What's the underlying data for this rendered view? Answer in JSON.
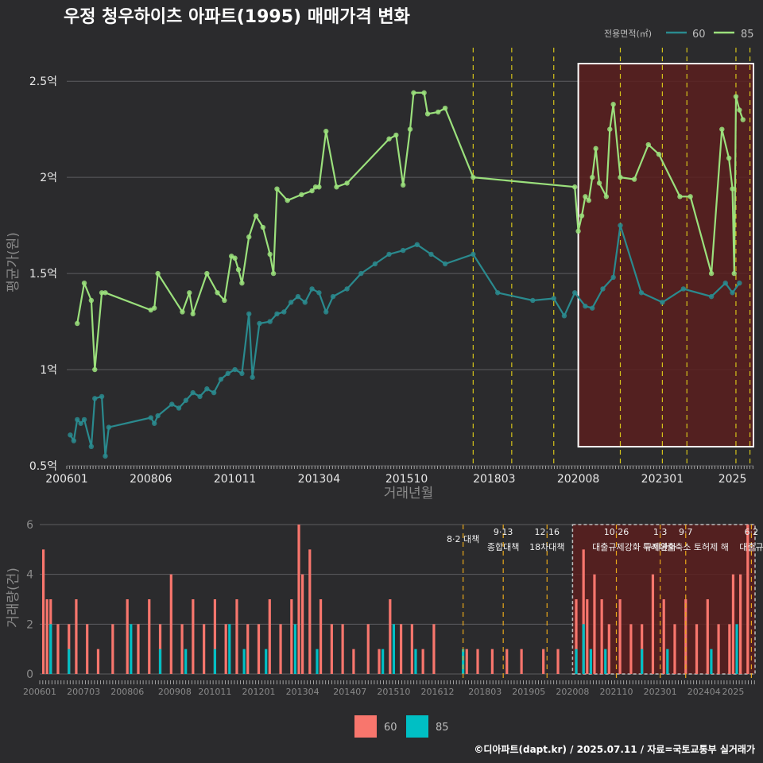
{
  "title": "우정 청우하이츠 아파트(1995) 매매가격 변화",
  "footer": "©디아파트(dapt.kr) / 2025.07.11 / 자료=국토교통부 실거래가",
  "legend_top": {
    "title": "전용면적(㎡)",
    "items": [
      {
        "label": "60",
        "color": "#2a8a8e"
      },
      {
        "label": "85",
        "color": "#9be07c"
      }
    ]
  },
  "legend_bottom": {
    "items": [
      {
        "label": "60",
        "color": "#f8766d"
      },
      {
        "label": "85",
        "color": "#00bfc4"
      }
    ]
  },
  "chart_data": [
    {
      "type": "line",
      "ylabel": "평균가(원)",
      "xlabel": "거래년월",
      "ylim": [
        0.5,
        2.6
      ],
      "xlim": [
        2006.0,
        2025.6
      ],
      "y_ticks": [
        {
          "v": 0.5,
          "label": "0.5억"
        },
        {
          "v": 1.0,
          "label": "1억"
        },
        {
          "v": 1.5,
          "label": "1.5억"
        },
        {
          "v": 2.0,
          "label": "2억"
        },
        {
          "v": 2.5,
          "label": "2.5억"
        }
      ],
      "x_ticks": [
        {
          "v": 2006.0,
          "label": "200601"
        },
        {
          "v": 2008.4,
          "label": "200806"
        },
        {
          "v": 2010.8,
          "label": "201011"
        },
        {
          "v": 2013.2,
          "label": "201304"
        },
        {
          "v": 2015.7,
          "label": "201510"
        },
        {
          "v": 2018.2,
          "label": "201803"
        },
        {
          "v": 2020.6,
          "label": "202008"
        },
        {
          "v": 2023.0,
          "label": "202301"
        },
        {
          "v": 2025.0,
          "label": "2025"
        }
      ],
      "highlight_range": [
        2020.6,
        2025.6
      ],
      "policy_lines": [
        2017.6,
        2018.7,
        2019.9,
        2021.8,
        2023.0,
        2023.7,
        2025.1,
        2025.5
      ],
      "series": [
        {
          "name": "85",
          "color": "#9be07c",
          "x": [
            2006.3,
            2006.5,
            2006.7,
            2006.8,
            2007.0,
            2007.1,
            2008.4,
            2008.5,
            2008.6,
            2009.3,
            2009.5,
            2009.6,
            2010.0,
            2010.3,
            2010.5,
            2010.7,
            2010.8,
            2010.9,
            2011.0,
            2011.2,
            2011.4,
            2011.6,
            2011.8,
            2011.9,
            2012.0,
            2012.3,
            2012.7,
            2013.0,
            2013.1,
            2013.2,
            2013.4,
            2013.7,
            2014.0,
            2015.2,
            2015.4,
            2015.6,
            2015.8,
            2015.9,
            2016.2,
            2016.3,
            2016.6,
            2016.8,
            2017.6,
            2020.5,
            2020.6,
            2020.7,
            2020.8,
            2020.9,
            2021.0,
            2021.1,
            2021.2,
            2021.4,
            2021.5,
            2021.6,
            2021.8,
            2022.2,
            2022.6,
            2022.9,
            2023.5,
            2023.8,
            2024.4,
            2024.7,
            2024.9,
            2025.0,
            2025.05,
            2025.1,
            2025.2,
            2025.3
          ],
          "values": [
            1.24,
            1.45,
            1.36,
            1.0,
            1.4,
            1.4,
            1.31,
            1.32,
            1.5,
            1.3,
            1.4,
            1.29,
            1.5,
            1.4,
            1.36,
            1.59,
            1.58,
            1.52,
            1.45,
            1.69,
            1.8,
            1.74,
            1.6,
            1.5,
            1.94,
            1.88,
            1.91,
            1.93,
            1.95,
            1.95,
            2.24,
            1.95,
            1.97,
            2.2,
            2.22,
            1.96,
            2.25,
            2.44,
            2.44,
            2.33,
            2.34,
            2.36,
            2.0,
            1.95,
            1.72,
            1.8,
            1.9,
            1.88,
            2.0,
            2.15,
            1.97,
            1.9,
            2.25,
            2.38,
            2.0,
            1.99,
            2.17,
            2.12,
            1.9,
            1.9,
            1.5,
            2.25,
            2.1,
            1.94,
            1.5,
            2.42,
            2.35,
            2.3
          ]
        },
        {
          "name": "60",
          "color": "#2a8a8e",
          "x": [
            2006.1,
            2006.2,
            2006.3,
            2006.4,
            2006.5,
            2006.7,
            2006.8,
            2007.0,
            2007.1,
            2007.2,
            2008.4,
            2008.5,
            2008.6,
            2009.0,
            2009.2,
            2009.4,
            2009.6,
            2009.8,
            2010.0,
            2010.2,
            2010.4,
            2010.6,
            2010.8,
            2011.0,
            2011.2,
            2011.3,
            2011.5,
            2011.8,
            2012.0,
            2012.2,
            2012.4,
            2012.6,
            2012.8,
            2013.0,
            2013.2,
            2013.4,
            2013.6,
            2014.0,
            2014.4,
            2014.8,
            2015.2,
            2015.6,
            2016.0,
            2016.4,
            2016.8,
            2017.6,
            2018.3,
            2019.3,
            2019.9,
            2020.2,
            2020.5,
            2020.8,
            2021.0,
            2021.3,
            2021.6,
            2021.8,
            2022.4,
            2023.0,
            2023.6,
            2024.4,
            2024.8,
            2025.0,
            2025.2
          ],
          "values": [
            0.66,
            0.63,
            0.74,
            0.72,
            0.74,
            0.6,
            0.85,
            0.86,
            0.55,
            0.7,
            0.75,
            0.72,
            0.76,
            0.82,
            0.8,
            0.84,
            0.88,
            0.86,
            0.9,
            0.88,
            0.95,
            0.98,
            1.0,
            0.98,
            1.29,
            0.96,
            1.24,
            1.25,
            1.29,
            1.3,
            1.35,
            1.38,
            1.35,
            1.42,
            1.4,
            1.3,
            1.38,
            1.42,
            1.5,
            1.55,
            1.6,
            1.62,
            1.65,
            1.6,
            1.55,
            1.6,
            1.4,
            1.36,
            1.37,
            1.28,
            1.4,
            1.33,
            1.32,
            1.42,
            1.48,
            1.75,
            1.4,
            1.35,
            1.42,
            1.38,
            1.45,
            1.4,
            1.45
          ]
        }
      ]
    },
    {
      "type": "bar",
      "ylabel": "거래량(건)",
      "ylim": [
        0,
        6
      ],
      "y_ticks": [
        0,
        2,
        4,
        6
      ],
      "x_ticks": [
        {
          "v": 2006.0,
          "label": "200601"
        },
        {
          "v": 2007.2,
          "label": "200703"
        },
        {
          "v": 2008.4,
          "label": "200806"
        },
        {
          "v": 2009.7,
          "label": "200908"
        },
        {
          "v": 2010.8,
          "label": "201011"
        },
        {
          "v": 2012.0,
          "label": "201201"
        },
        {
          "v": 2013.2,
          "label": "201304"
        },
        {
          "v": 2014.5,
          "label": "201407"
        },
        {
          "v": 2015.7,
          "label": "201510"
        },
        {
          "v": 2016.9,
          "label": "201612"
        },
        {
          "v": 2018.2,
          "label": "201803"
        },
        {
          "v": 2019.4,
          "label": "201905"
        },
        {
          "v": 2020.6,
          "label": "202008"
        },
        {
          "v": 2021.8,
          "label": "202110"
        },
        {
          "v": 2023.0,
          "label": "202301"
        },
        {
          "v": 2024.2,
          "label": "202404"
        },
        {
          "v": 2025.0,
          "label": "2025"
        }
      ],
      "policies": [
        {
          "x": 2017.6,
          "date": "",
          "label": "8·2 대책"
        },
        {
          "x": 2018.7,
          "date": "9·13",
          "label": "종합대책"
        },
        {
          "x": 2019.9,
          "date": "12·16",
          "label": "18차대책"
        },
        {
          "x": 2021.8,
          "date": "10·26",
          "label": "대출규제강화"
        },
        {
          "x": 2023.0,
          "date": "1·3",
          "label": "규제완화"
        },
        {
          "x": 2023.7,
          "date": "9·7",
          "label": "특례대출축소 토허제 해"
        },
        {
          "x": 2025.5,
          "date": "6·2",
          "label": "대출규"
        }
      ],
      "series": [
        {
          "name": "60",
          "color": "#f8766d",
          "x": [
            2006.1,
            2006.2,
            2006.3,
            2006.5,
            2006.8,
            2007.0,
            2007.3,
            2007.6,
            2008.0,
            2008.4,
            2008.7,
            2009.0,
            2009.3,
            2009.6,
            2009.9,
            2010.2,
            2010.5,
            2010.8,
            2011.1,
            2011.4,
            2011.7,
            2012.0,
            2012.3,
            2012.6,
            2012.9,
            2013.1,
            2013.2,
            2013.4,
            2013.7,
            2014.0,
            2014.3,
            2014.6,
            2015.0,
            2015.3,
            2015.6,
            2015.9,
            2016.2,
            2016.5,
            2016.8,
            2017.7,
            2018.0,
            2018.4,
            2018.8,
            2019.2,
            2019.8,
            2020.2,
            2020.7,
            2020.9,
            2021.0,
            2021.2,
            2021.4,
            2021.6,
            2021.9,
            2022.2,
            2022.5,
            2022.8,
            2023.1,
            2023.4,
            2023.7,
            2024.0,
            2024.3,
            2024.6,
            2024.9,
            2025.0,
            2025.2,
            2025.4
          ],
          "values": [
            5,
            3,
            3,
            2,
            2,
            3,
            2,
            1,
            2,
            3,
            2,
            3,
            2,
            4,
            2,
            3,
            2,
            3,
            2,
            3,
            2,
            2,
            3,
            2,
            3,
            6,
            4,
            5,
            3,
            2,
            2,
            1,
            2,
            1,
            3,
            2,
            2,
            1,
            2,
            1,
            1,
            1,
            1,
            1,
            1,
            1,
            3,
            5,
            3,
            4,
            3,
            2,
            3,
            2,
            2,
            4,
            3,
            2,
            3,
            2,
            3,
            2,
            2,
            4,
            4,
            6
          ]
        },
        {
          "name": "85",
          "color": "#00bfc4",
          "x": [
            2006.3,
            2006.8,
            2008.5,
            2009.3,
            2010.0,
            2010.8,
            2011.2,
            2011.6,
            2012.2,
            2013.0,
            2013.6,
            2015.4,
            2015.7,
            2016.3,
            2017.6,
            2020.7,
            2020.9,
            2021.1,
            2021.5,
            2022.5,
            2023.2,
            2024.4,
            2025.1
          ],
          "values": [
            2,
            1,
            2,
            1,
            1,
            1,
            2,
            1,
            1,
            2,
            1,
            1,
            2,
            1,
            1,
            1,
            2,
            1,
            1,
            1,
            1,
            1,
            2
          ]
        }
      ]
    }
  ]
}
